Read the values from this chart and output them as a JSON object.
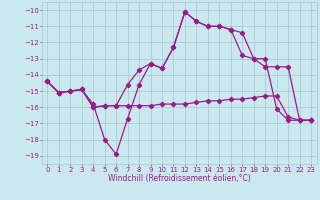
{
  "xlabel": "Windchill (Refroidissement éolien,°C)",
  "x": [
    0,
    1,
    2,
    3,
    4,
    5,
    6,
    7,
    8,
    9,
    10,
    11,
    12,
    13,
    14,
    15,
    16,
    17,
    18,
    19,
    20,
    21,
    22,
    23
  ],
  "line1": [
    -14.4,
    -15.1,
    -15.0,
    -14.9,
    -15.8,
    -18.0,
    -18.9,
    -16.7,
    -14.6,
    -13.3,
    -13.6,
    -12.3,
    -10.1,
    -10.7,
    -11.0,
    -11.0,
    -11.2,
    -12.8,
    -13.0,
    -13.0,
    -16.1,
    -16.8,
    -16.8,
    -16.8
  ],
  "line2": [
    -14.4,
    -15.1,
    -15.0,
    -14.9,
    -16.0,
    -15.9,
    -15.9,
    -15.9,
    -15.9,
    -15.9,
    -15.8,
    -15.8,
    -15.8,
    -15.7,
    -15.6,
    -15.6,
    -15.5,
    -15.5,
    -15.4,
    -15.3,
    -15.3,
    -16.6,
    -16.8,
    -16.8
  ],
  "line3": [
    -14.4,
    -15.1,
    -15.0,
    -14.9,
    -16.0,
    -15.9,
    -15.9,
    -14.6,
    -13.7,
    -13.3,
    -13.6,
    -12.3,
    -10.1,
    -10.7,
    -11.0,
    -11.0,
    -11.2,
    -11.4,
    -13.0,
    -13.5,
    -13.5,
    -13.5,
    -16.8,
    -16.8
  ],
  "ylim": [
    -19.5,
    -9.5
  ],
  "yticks": [
    -10,
    -11,
    -12,
    -13,
    -14,
    -15,
    -16,
    -17,
    -18,
    -19
  ],
  "xlim": [
    -0.5,
    23.5
  ],
  "line_color": "#9b1a8a",
  "bg_color": "#cce8ef",
  "grid_color": "#a0c8d0",
  "tick_fontsize": 5.0,
  "xlabel_fontsize": 5.5,
  "linewidth": 0.9,
  "markersize": 2.2
}
